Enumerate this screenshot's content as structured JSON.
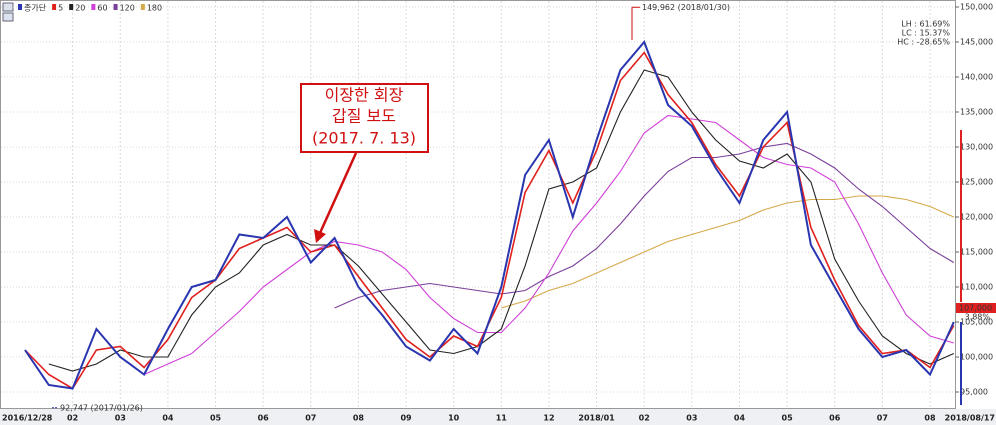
{
  "chart_data": {
    "type": "line",
    "categories": [
      "2016/12/28",
      null,
      "02",
      null,
      "03",
      null,
      "04",
      null,
      "05",
      null,
      "06",
      null,
      "07",
      null,
      "08",
      null,
      "09",
      null,
      "10",
      null,
      "11",
      null,
      "12",
      null,
      "2018/01",
      null,
      "02",
      null,
      "03",
      null,
      "04",
      null,
      "05",
      null,
      "06",
      null,
      "07",
      null,
      "08",
      "2018/08/17"
    ],
    "series": [
      {
        "name": "종가단",
        "color": "#2a35b0",
        "values": [
          101000,
          96000,
          95500,
          104000,
          100000,
          97500,
          104000,
          110000,
          111000,
          117500,
          117000,
          120000,
          113500,
          117000,
          110000,
          106000,
          101500,
          99500,
          104000,
          100500,
          110000,
          126000,
          131000,
          120000,
          131000,
          141000,
          145000,
          136000,
          133000,
          127000,
          122000,
          131000,
          135000,
          116000,
          110000,
          104000,
          100000,
          101000,
          97500,
          105000
        ]
      },
      {
        "name": "5",
        "color": "#e0201c",
        "values": [
          101000,
          97500,
          95500,
          101000,
          101500,
          98500,
          102500,
          108500,
          111000,
          115500,
          117000,
          118500,
          115000,
          116000,
          111500,
          107000,
          102500,
          100000,
          103000,
          101500,
          108500,
          123500,
          129500,
          122000,
          129500,
          139500,
          143500,
          137500,
          133500,
          127500,
          123000,
          130000,
          133500,
          118500,
          111000,
          104500,
          100500,
          101000,
          98500,
          104500
        ]
      },
      {
        "name": "20",
        "color": "#222222",
        "values": [
          null,
          99000,
          98000,
          99000,
          101000,
          100000,
          100000,
          106000,
          110000,
          112000,
          116000,
          117500,
          116000,
          116000,
          113000,
          109000,
          105000,
          101000,
          100500,
          101500,
          104000,
          113000,
          124000,
          125000,
          127000,
          135000,
          141000,
          140000,
          135000,
          131000,
          128000,
          127000,
          129000,
          125000,
          114000,
          108000,
          103000,
          100500,
          99000,
          100500
        ]
      },
      {
        "name": "60",
        "color": "#d040d8",
        "values": [
          null,
          null,
          null,
          null,
          null,
          97500,
          99000,
          100500,
          103500,
          106500,
          110000,
          112500,
          115000,
          116500,
          116000,
          115000,
          112500,
          108500,
          105500,
          103500,
          103500,
          107000,
          112000,
          118000,
          122000,
          126500,
          132000,
          134500,
          134000,
          133500,
          131000,
          128500,
          127500,
          127000,
          125000,
          119000,
          112000,
          106000,
          103000,
          102000
        ]
      },
      {
        "name": "120",
        "color": "#7a3f9a",
        "values": [
          null,
          null,
          null,
          null,
          null,
          null,
          null,
          null,
          null,
          null,
          null,
          null,
          null,
          107000,
          108500,
          109500,
          110000,
          110500,
          110000,
          109500,
          109000,
          109500,
          111500,
          113000,
          115500,
          119000,
          123000,
          126500,
          128500,
          128500,
          129000,
          130000,
          130500,
          129000,
          127000,
          124000,
          121500,
          118500,
          115500,
          113500
        ]
      },
      {
        "name": "180",
        "color": "#d4a94a",
        "values": [
          null,
          null,
          null,
          null,
          null,
          null,
          null,
          null,
          null,
          null,
          null,
          null,
          null,
          null,
          null,
          null,
          null,
          null,
          null,
          null,
          107000,
          108000,
          109500,
          110500,
          112000,
          113500,
          115000,
          116500,
          117500,
          118500,
          119500,
          121000,
          122000,
          122500,
          122500,
          123000,
          123000,
          122500,
          121500,
          120000
        ]
      }
    ],
    "ylim": [
      93000,
      151000
    ],
    "yticks": [
      {
        "value": 95000,
        "label": "95,000"
      },
      {
        "value": 100000,
        "label": "100,000"
      },
      {
        "value": 105000,
        "label": "105,000"
      },
      {
        "value": 110000,
        "label": "110,000"
      },
      {
        "value": 115000,
        "label": "115,000"
      },
      {
        "value": 120000,
        "label": "120,000"
      },
      {
        "value": 125000,
        "label": "125,000"
      },
      {
        "value": 130000,
        "label": "130,000"
      },
      {
        "value": 135000,
        "label": "135,000"
      },
      {
        "value": 140000,
        "label": "140,000"
      },
      {
        "value": 145000,
        "label": "145,000"
      },
      {
        "value": 150000,
        "label": "150,000"
      }
    ],
    "grid": true,
    "high_label": "149,962 (2018/01/30)",
    "low_label": "92,747 (2017/01/26)",
    "current_price": "107,000",
    "current_change": "3.88%",
    "stats": [
      "LH : 61.69%",
      "LC : 15.37%",
      "HC : -28.65%"
    ],
    "callout": [
      "이장한 회장",
      "갑질 보도",
      "(2017. 7. 13)"
    ]
  }
}
